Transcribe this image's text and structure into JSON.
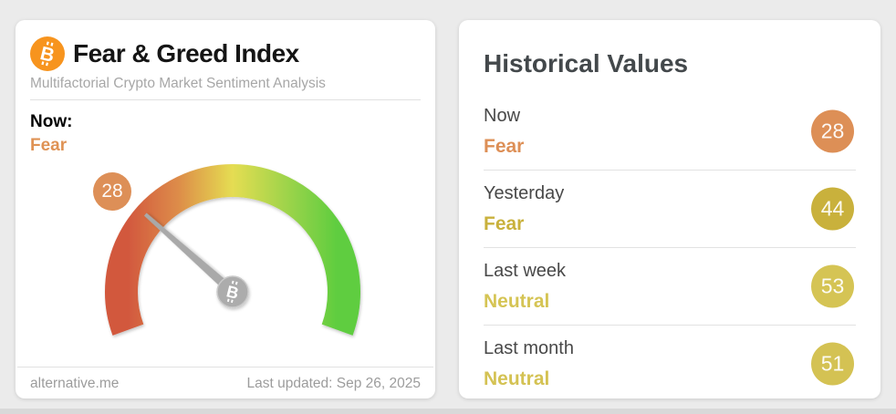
{
  "left_card": {
    "title": "Fear & Greed Index",
    "subtitle": "Multifactorial Crypto Market Sentiment Analysis",
    "now_label": "Now:",
    "now_classification": "Fear",
    "now_color": "#df9254",
    "gauge": {
      "value": 28,
      "min": 0,
      "max": 100,
      "badge_color": "#dd8f57",
      "needle_color": "#a9a9a9",
      "hub_color": "#acacac",
      "gradient": [
        "#d2583e",
        "#dd8c49",
        "#e5dd52",
        "#a0d44b",
        "#5ecd3f"
      ]
    },
    "footer": {
      "source": "alternative.me",
      "last_updated": "Last updated: Sep 26, 2025"
    }
  },
  "right_card": {
    "title": "Historical Values",
    "rows": [
      {
        "label": "Now",
        "classification": "Fear",
        "value": 28,
        "color": "#dd8f56"
      },
      {
        "label": "Yesterday",
        "classification": "Fear",
        "value": 44,
        "color": "#c9b13c"
      },
      {
        "label": "Last week",
        "classification": "Neutral",
        "value": 53,
        "color": "#d5c454"
      },
      {
        "label": "Last month",
        "classification": "Neutral",
        "value": 51,
        "color": "#d4c253"
      }
    ]
  },
  "icons": {
    "bitcoin_letter": "B",
    "bitcoin_orange": "#f7941e"
  }
}
